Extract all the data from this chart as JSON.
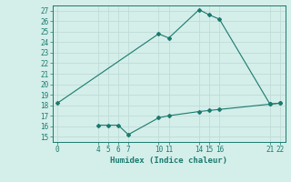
{
  "line1_x": [
    0,
    10,
    11,
    14,
    15,
    16,
    21,
    22
  ],
  "line1_y": [
    18.2,
    24.8,
    24.4,
    27.1,
    26.6,
    26.2,
    18.1,
    18.2
  ],
  "line2_x": [
    4,
    5,
    6,
    7,
    10,
    11,
    14,
    15,
    16,
    21,
    22
  ],
  "line2_y": [
    16.1,
    16.1,
    16.1,
    15.2,
    16.8,
    17.0,
    17.4,
    17.5,
    17.6,
    18.1,
    18.2
  ],
  "line_color": "#1a7a6e",
  "bg_color": "#d4eeea",
  "grid_color": "#c0dcd8",
  "xlabel": "Humidex (Indice chaleur)",
  "xlabel_fontsize": 6.5,
  "xlim": [
    -0.5,
    22.5
  ],
  "ylim": [
    14.5,
    27.5
  ],
  "xticks": [
    0,
    4,
    5,
    6,
    7,
    10,
    11,
    14,
    15,
    16,
    21,
    22
  ],
  "yticks": [
    15,
    16,
    17,
    18,
    19,
    20,
    21,
    22,
    23,
    24,
    25,
    26,
    27
  ],
  "tick_fontsize": 5.5,
  "marker": "D",
  "marker_size": 2.0,
  "line_width": 0.8
}
